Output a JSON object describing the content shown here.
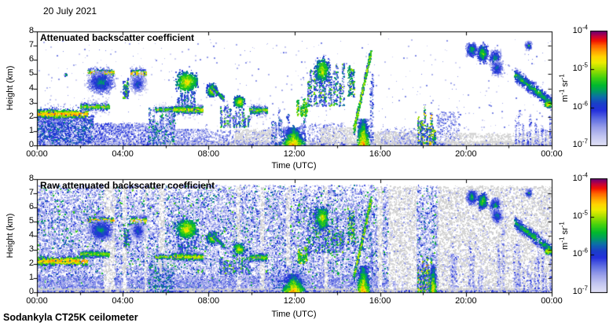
{
  "chart_data": {
    "type": "heatmap",
    "date_label": "20 July 2021",
    "footer": "Sodankyla CT25K ceilometer",
    "x": {
      "label": "Time (UTC)",
      "range_hours": [
        0,
        24
      ],
      "major_tick_hours": [
        0,
        4,
        8,
        12,
        16,
        20,
        24
      ],
      "major_tick_labels": [
        "00:00",
        "04:00",
        "08:00",
        "12:00",
        "16:00",
        "20:00",
        "00:00"
      ],
      "minor_tick_hours": [
        2,
        6,
        10,
        14,
        18,
        22
      ]
    },
    "y": {
      "label": "Height (km)",
      "range_km": [
        0,
        8
      ],
      "tick_labels": [
        "0",
        "1",
        "2",
        "3",
        "4",
        "5",
        "6",
        "7",
        "8"
      ]
    },
    "colorbar": {
      "unit_parts": [
        [
          "m",
          "-1"
        ],
        [
          " sr",
          "-1"
        ]
      ],
      "tick_base": "10",
      "tick_exponents": [
        "-4",
        "-5",
        "-6",
        "-7"
      ],
      "log_range": [
        -7,
        -4
      ]
    },
    "colormap": {
      "stops": [
        [
          0.0,
          "#e2e2f6"
        ],
        [
          0.08,
          "#c3c6f1"
        ],
        [
          0.16,
          "#979ee9"
        ],
        [
          0.24,
          "#5b6ae2"
        ],
        [
          0.31,
          "#2430dc"
        ],
        [
          0.37,
          "#1a3fc8"
        ],
        [
          0.43,
          "#0c6fa8"
        ],
        [
          0.48,
          "#009c62"
        ],
        [
          0.53,
          "#00b92e"
        ],
        [
          0.6,
          "#45d20e"
        ],
        [
          0.67,
          "#a4e000"
        ],
        [
          0.73,
          "#ecec00"
        ],
        [
          0.78,
          "#ffd400"
        ],
        [
          0.83,
          "#ffa000"
        ],
        [
          0.88,
          "#ff5e00"
        ],
        [
          0.92,
          "#f21400"
        ],
        [
          0.96,
          "#c4003a"
        ],
        [
          1.0,
          "#6f0072"
        ]
      ],
      "ground_gray": "#d3d3d3"
    },
    "shared_features": [
      {
        "kind": "layer",
        "t": [
          0,
          2.35
        ],
        "hc": 2.25,
        "sd": 0.16,
        "n": 950,
        "core": -4.25
      },
      {
        "kind": "layer",
        "t": [
          2.0,
          3.35
        ],
        "hc": 2.75,
        "sd": 0.15,
        "n": 520,
        "core": -4.8
      },
      {
        "kind": "layer",
        "t": [
          2.35,
          3.55
        ],
        "hc": 5.15,
        "sd": 0.1,
        "n": 600,
        "core": -4.3
      },
      {
        "kind": "cluster",
        "t": [
          2.3,
          3.6
        ],
        "hc": 4.45,
        "ht": 0.8,
        "n": 850,
        "core": -5.3
      },
      {
        "kind": "columns",
        "t": [
          4.0,
          4.25
        ],
        "h": [
          3.3,
          5.3
        ],
        "m": 3,
        "w": 0.1,
        "np": 60,
        "val": [
          -6.2,
          -5.0
        ]
      },
      {
        "kind": "layer",
        "t": [
          4.35,
          5.05
        ],
        "hc": 5.1,
        "sd": 0.12,
        "n": 450,
        "core": -4.35
      },
      {
        "kind": "cluster",
        "t": [
          4.3,
          5.05
        ],
        "hc": 4.4,
        "ht": 0.75,
        "n": 480,
        "core": -5.5
      },
      {
        "kind": "columns",
        "t": [
          5.2,
          6.4
        ],
        "h": [
          0,
          3.1
        ],
        "m": 14,
        "w": 0.09,
        "np": 70,
        "val": [
          -6.8,
          -5.3
        ]
      },
      {
        "kind": "layer",
        "t": [
          5.5,
          6.35
        ],
        "hc": 2.55,
        "sd": 0.1,
        "n": 300,
        "core": -4.8
      },
      {
        "kind": "cluster",
        "t": [
          6.45,
          7.45
        ],
        "hc": 4.5,
        "ht": 0.7,
        "n": 800,
        "core": -4.45
      },
      {
        "kind": "columns",
        "t": [
          6.5,
          7.4
        ],
        "h": [
          2.6,
          3.9
        ],
        "m": 6,
        "w": 0.08,
        "np": 40,
        "val": [
          -6.3,
          -5.4
        ]
      },
      {
        "kind": "layer",
        "t": [
          6.35,
          7.7
        ],
        "hc": 2.55,
        "sd": 0.14,
        "n": 600,
        "core": -4.55
      },
      {
        "kind": "cluster",
        "t": [
          7.9,
          8.4
        ],
        "hc": 3.9,
        "ht": 0.45,
        "n": 420,
        "core": -4.55
      },
      {
        "kind": "diag",
        "t": [
          8.05,
          8.7
        ],
        "h": [
          4.2,
          3.3
        ],
        "th": 0.15,
        "n": 280,
        "core": -5.0
      },
      {
        "kind": "columns",
        "t": [
          8.5,
          9.9
        ],
        "h": [
          1.3,
          3.3
        ],
        "m": 10,
        "w": 0.08,
        "np": 45,
        "val": [
          -6.5,
          -5.0
        ]
      },
      {
        "kind": "cluster",
        "t": [
          9.15,
          9.65
        ],
        "hc": 3.1,
        "ht": 0.4,
        "n": 360,
        "core": -4.5
      },
      {
        "kind": "layer",
        "t": [
          9.9,
          10.7
        ],
        "hc": 2.5,
        "sd": 0.17,
        "n": 420,
        "core": -4.8
      },
      {
        "kind": "columns",
        "t": [
          10.9,
          12.55
        ],
        "h": [
          0,
          2.6
        ],
        "m": 12,
        "w": 0.09,
        "np": 55,
        "val": [
          -6.8,
          -5.6
        ]
      },
      {
        "kind": "plume",
        "t": [
          11.35,
          12.5
        ],
        "h1": 1.3,
        "n": 1200,
        "core": -4.15
      },
      {
        "kind": "columns",
        "t": [
          12.1,
          12.6
        ],
        "h": [
          2.1,
          3.4
        ],
        "m": 4,
        "w": 0.09,
        "np": 45,
        "val": [
          -5.6,
          -4.7
        ]
      },
      {
        "kind": "columns",
        "t": [
          12.55,
          14.3
        ],
        "h": [
          2.8,
          6.5
        ],
        "m": 13,
        "w": 0.09,
        "np": 60,
        "val": [
          -6.4,
          -5.0
        ]
      },
      {
        "kind": "cluster",
        "t": [
          12.95,
          13.6
        ],
        "hc": 5.3,
        "ht": 0.9,
        "n": 480,
        "core": -4.6
      },
      {
        "kind": "columns",
        "t": [
          14.45,
          14.8
        ],
        "h": [
          3.4,
          6.4
        ],
        "m": 3,
        "w": 0.1,
        "np": 60,
        "val": [
          -6.0,
          -4.9
        ]
      },
      {
        "kind": "diag",
        "t": [
          14.75,
          15.55
        ],
        "h": [
          1.1,
          6.6
        ],
        "th": 0.22,
        "n": 700,
        "core": -4.6
      },
      {
        "kind": "plume",
        "t": [
          14.85,
          15.5
        ],
        "h1": 1.9,
        "n": 1100,
        "core": -4.1
      },
      {
        "kind": "columns",
        "t": [
          15.5,
          15.65
        ],
        "h": [
          0,
          7.0
        ],
        "m": 2,
        "w": 0.06,
        "np": 70,
        "val": [
          -6.6,
          -5.7
        ]
      },
      {
        "kind": "columns",
        "t": [
          17.72,
          18.4
        ],
        "h": [
          0,
          3.05
        ],
        "m": 7,
        "w": 0.07,
        "np": 65,
        "val": [
          -6.3,
          -4.5
        ]
      },
      {
        "kind": "columns",
        "t": [
          18.42,
          18.55
        ],
        "h": [
          0,
          2.1
        ],
        "m": 2,
        "w": 0.05,
        "np": 50,
        "val": [
          -5.9,
          -4.7
        ]
      },
      {
        "kind": "cluster",
        "t": [
          20.0,
          20.5
        ],
        "hc": 6.75,
        "ht": 0.5,
        "n": 400,
        "core": -5.1
      },
      {
        "kind": "cluster",
        "t": [
          20.52,
          20.98
        ],
        "hc": 6.5,
        "ht": 0.6,
        "n": 460,
        "core": -4.85
      },
      {
        "kind": "cluster",
        "t": [
          21.05,
          21.6
        ],
        "hc": 6.15,
        "ht": 0.55,
        "n": 400,
        "core": -5.2
      },
      {
        "kind": "cluster",
        "t": [
          21.15,
          21.7
        ],
        "hc": 5.45,
        "ht": 0.55,
        "n": 360,
        "core": -5.35
      },
      {
        "kind": "cluster",
        "t": [
          22.75,
          23.05
        ],
        "hc": 7.05,
        "ht": 0.28,
        "n": 180,
        "core": -5.2
      },
      {
        "kind": "diag",
        "t": [
          22.25,
          24.0
        ],
        "h": [
          5.0,
          2.95
        ],
        "th": 0.35,
        "n": 850,
        "core": -5.1
      },
      {
        "kind": "cluster",
        "t": [
          23.62,
          24.0
        ],
        "hc": 2.95,
        "ht": 0.22,
        "n": 260,
        "core": -4.35
      },
      {
        "kind": "columns",
        "t": [
          22.2,
          24.0
        ],
        "h": [
          0,
          2.6
        ],
        "m": 10,
        "w": 0.07,
        "np": 40,
        "val": [
          -6.8,
          -6.0
        ]
      }
    ],
    "panels": [
      {
        "id": "attenuated",
        "title": "Attenuated backscatter coefficient",
        "under": [
          {
            "kind": "specks",
            "t": [
              0,
              24
            ],
            "h": [
              0,
              0.32
            ],
            "n": 3200,
            "color": "#d3d3d3"
          },
          {
            "kind": "specks",
            "t": [
              0,
              24
            ],
            "h": [
              0,
              0.15
            ],
            "n": 900,
            "val": [
              -6.6,
              -6.1
            ]
          },
          {
            "kind": "specks",
            "t": [
              0,
              2.6
            ],
            "h": [
              0,
              2.15
            ],
            "n": 2600,
            "val": [
              -6.9,
              -5.8
            ]
          },
          {
            "kind": "specks",
            "t": [
              0,
              2.6
            ],
            "h": [
              0.2,
              2.1
            ],
            "n": 500,
            "val": [
              -6.2,
              -5.6
            ]
          },
          {
            "kind": "specks",
            "t": [
              2.6,
              5.25
            ],
            "h": [
              0,
              1.6
            ],
            "n": 1400,
            "val": [
              -6.9,
              -6.0
            ]
          },
          {
            "kind": "specks",
            "t": [
              6.3,
              8.0
            ],
            "h": [
              0,
              1.2
            ],
            "n": 500,
            "val": [
              -6.9,
              -6.2
            ]
          },
          {
            "kind": "specks",
            "t": [
              8.0,
              11.0
            ],
            "h": [
              0,
              1.1
            ],
            "n": 450,
            "val": [
              -6.9,
              -6.2
            ]
          },
          {
            "kind": "specks",
            "t": [
              9.2,
              11.2
            ],
            "h": [
              0.3,
              1.2
            ],
            "n": 350,
            "color": "#d8d8d8"
          },
          {
            "kind": "specks",
            "t": [
              12.6,
              14.4
            ],
            "h": [
              0,
              1.6
            ],
            "n": 300,
            "val": [
              -6.9,
              -6.2
            ]
          },
          {
            "kind": "specks",
            "t": [
              13.2,
              15.0
            ],
            "h": [
              0.3,
              1.3
            ],
            "n": 350,
            "color": "#d8d8d8"
          },
          {
            "kind": "specks",
            "t": [
              15.7,
              17.7
            ],
            "h": [
              0,
              1.0
            ],
            "n": 500,
            "color": "#d3d3d3"
          },
          {
            "kind": "specks",
            "t": [
              16.0,
              17.7
            ],
            "h": [
              0,
              1.2
            ],
            "n": 200,
            "val": [
              -6.9,
              -6.3
            ]
          },
          {
            "kind": "specks",
            "t": [
              18.6,
              19.7
            ],
            "h": [
              0,
              2.4
            ],
            "n": 350,
            "val": [
              -6.9,
              -6.2
            ]
          },
          {
            "kind": "specks",
            "t": [
              19.0,
              24
            ],
            "h": [
              0,
              0.9
            ],
            "n": 600,
            "color": "#d6d6d6"
          },
          {
            "kind": "specks",
            "t": [
              0,
              24
            ],
            "h": [
              0,
              7.5
            ],
            "n": 550,
            "val": [
              -6.9,
              -6.35
            ]
          }
        ],
        "over": [
          {
            "kind": "cluster",
            "t": [
              1.25,
              1.4
            ],
            "hc": 5.0,
            "ht": 0.12,
            "n": 40,
            "core": -5.0
          }
        ]
      },
      {
        "id": "raw",
        "title": "Raw attenuated backscatter coefficient",
        "background": {
          "noise_t": [
            [
              0,
              3.08
            ],
            [
              3.6,
              3.95
            ],
            [
              4.15,
              5.0
            ],
            [
              5.08,
              5.65
            ],
            [
              5.92,
              9.28
            ],
            [
              9.45,
              10.38
            ],
            [
              10.58,
              11.58
            ],
            [
              11.78,
              13.36
            ],
            [
              13.52,
              15.86
            ],
            [
              16.08,
              16.35
            ],
            [
              17.68,
              18.65
            ]
          ],
          "gray_t": [
            [
              3.08,
              3.6
            ],
            [
              3.95,
              4.15
            ],
            [
              5.0,
              5.08
            ],
            [
              5.65,
              5.92
            ],
            [
              9.28,
              9.45
            ],
            [
              10.38,
              10.58
            ],
            [
              11.58,
              11.78
            ],
            [
              13.36,
              13.52
            ],
            [
              15.86,
              16.08
            ],
            [
              16.35,
              17.68
            ],
            [
              18.65,
              24.0
            ]
          ]
        },
        "under": [
          {
            "kind": "specks",
            "t": [
              0,
              24
            ],
            "h": [
              0,
              0.3
            ],
            "n": 3000,
            "color": "#cfcfcf"
          },
          {
            "kind": "specks",
            "t": [
              0,
              24
            ],
            "h": [
              0,
              0.15
            ],
            "n": 1200,
            "val": [
              -6.5,
              -6.0
            ]
          }
        ],
        "over": [
          {
            "kind": "plume",
            "t": [
              18.28,
              18.6
            ],
            "h1": 2.0,
            "n": 700,
            "core": -4.2
          },
          {
            "kind": "columns",
            "t": [
              16.5,
              17.2
            ],
            "h": [
              0,
              2.0
            ],
            "m": 2,
            "w": 0.08,
            "np": 40,
            "val": [
              -6.9,
              -6.2
            ]
          },
          {
            "kind": "columns",
            "t": [
              19.25,
              19.55
            ],
            "h": [
              0,
              6.3
            ],
            "m": 2,
            "w": 0.12,
            "np": 110,
            "val": [
              -6.9,
              -6.1
            ]
          },
          {
            "kind": "columns",
            "t": [
              20.12,
              20.4
            ],
            "h": [
              0,
              4.2
            ],
            "m": 2,
            "w": 0.1,
            "np": 80,
            "val": [
              -6.9,
              -6.1
            ]
          },
          {
            "kind": "columns",
            "t": [
              20.55,
              20.8
            ],
            "h": [
              0,
              3.0
            ],
            "m": 2,
            "w": 0.1,
            "np": 60,
            "val": [
              -6.9,
              -6.2
            ]
          },
          {
            "kind": "columns",
            "t": [
              21.45,
              21.8
            ],
            "h": [
              0,
              6.5
            ],
            "m": 2,
            "w": 0.12,
            "np": 110,
            "val": [
              -6.9,
              -6.1
            ]
          },
          {
            "kind": "columns",
            "t": [
              22.15,
              22.5
            ],
            "h": [
              0,
              5.0
            ],
            "m": 2,
            "w": 0.12,
            "np": 90,
            "val": [
              -6.9,
              -6.1
            ]
          },
          {
            "kind": "columns",
            "t": [
              23.25,
              23.6
            ],
            "h": [
              0,
              4.5
            ],
            "m": 2,
            "w": 0.12,
            "np": 80,
            "val": [
              -6.9,
              -6.1
            ]
          },
          {
            "kind": "columns",
            "t": [
              23.8,
              24.0
            ],
            "h": [
              0,
              3.2
            ],
            "m": 1,
            "w": 0.12,
            "np": 60,
            "val": [
              -6.9,
              -6.2
            ]
          }
        ]
      }
    ]
  }
}
